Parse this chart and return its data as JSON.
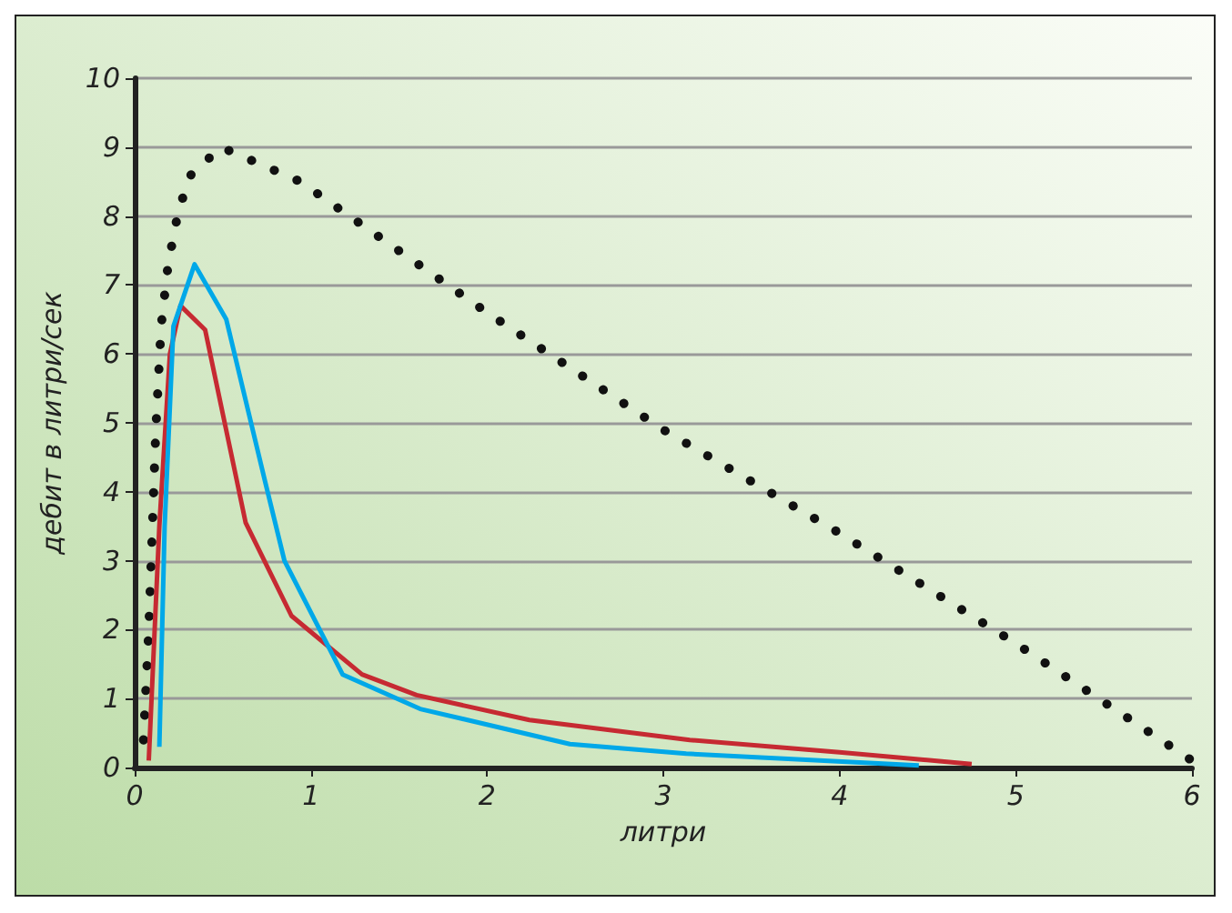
{
  "chart_data": {
    "type": "line",
    "xlabel": "литри",
    "ylabel": "дебит в литри/сек",
    "xlim": [
      0,
      6
    ],
    "ylim": [
      0,
      10
    ],
    "xticks": [
      0,
      1,
      2,
      3,
      4,
      5,
      6
    ],
    "yticks": [
      0,
      1,
      2,
      3,
      4,
      5,
      6,
      7,
      8,
      9,
      10
    ],
    "grid": "y",
    "marker": "none",
    "series": [
      {
        "color": "#111111",
        "line_style": "dotted",
        "x": [
          0.05,
          0.08,
          0.12,
          0.15,
          0.19,
          0.25,
          0.32,
          0.49,
          0.94,
          2,
          3,
          4,
          5,
          6
        ],
        "values": [
          0.4,
          2,
          4.9,
          6.4,
          7.3,
          8.1,
          8.6,
          9,
          8.5,
          6.6,
          4.9,
          3.4,
          1.8,
          0.1
        ]
      },
      {
        "color": "#c62a32",
        "line_style": "solid",
        "x": [
          0.08,
          0.14,
          0.2,
          0.26,
          0.4,
          0.63,
          0.89,
          1.29,
          1.6,
          2.24,
          3.15,
          4,
          4.75
        ],
        "values": [
          0.1,
          3.5,
          6,
          6.7,
          6.35,
          3.55,
          2.2,
          1.35,
          1.05,
          0.69,
          0.4,
          0.22,
          0.05
        ]
      },
      {
        "color": "#00a8e8",
        "line_style": "solid",
        "x": [
          0.14,
          0.17,
          0.22,
          0.34,
          0.52,
          0.74,
          0.85,
          1.18,
          1.62,
          2.47,
          3.13,
          4.45
        ],
        "values": [
          0.3,
          3.5,
          6.4,
          7.3,
          6.5,
          4.15,
          3,
          1.35,
          0.85,
          0.34,
          0.2,
          0.03
        ]
      }
    ]
  }
}
